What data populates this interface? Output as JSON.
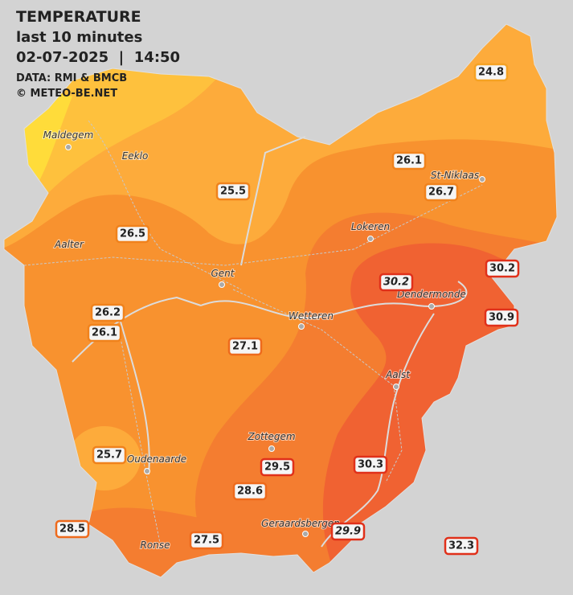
{
  "header": {
    "title": "TEMPERATURE",
    "period": "last 10 minutes",
    "timestamp": "02-07-2025  |  14:50",
    "source": "DATA: RMI & BMCB",
    "copyright": "© METEO-BE.NET"
  },
  "cities": [
    "Maldegem",
    "Eeklo",
    "St-Niklaas",
    "Aalter",
    "Gent",
    "Lokeren",
    "Dendermonde",
    "Wetteren",
    "Aalst",
    "Zottegem",
    "Oudenaarde",
    "Ronse",
    "Geraardsbergen"
  ],
  "stations": [
    24.8,
    26.1,
    26.7,
    25.5,
    26.5,
    30.2,
    30.2,
    30.9,
    26.2,
    26.1,
    27.1,
    25.7,
    29.5,
    30.3,
    28.6,
    28.5,
    27.5,
    29.9,
    32.3
  ]
}
